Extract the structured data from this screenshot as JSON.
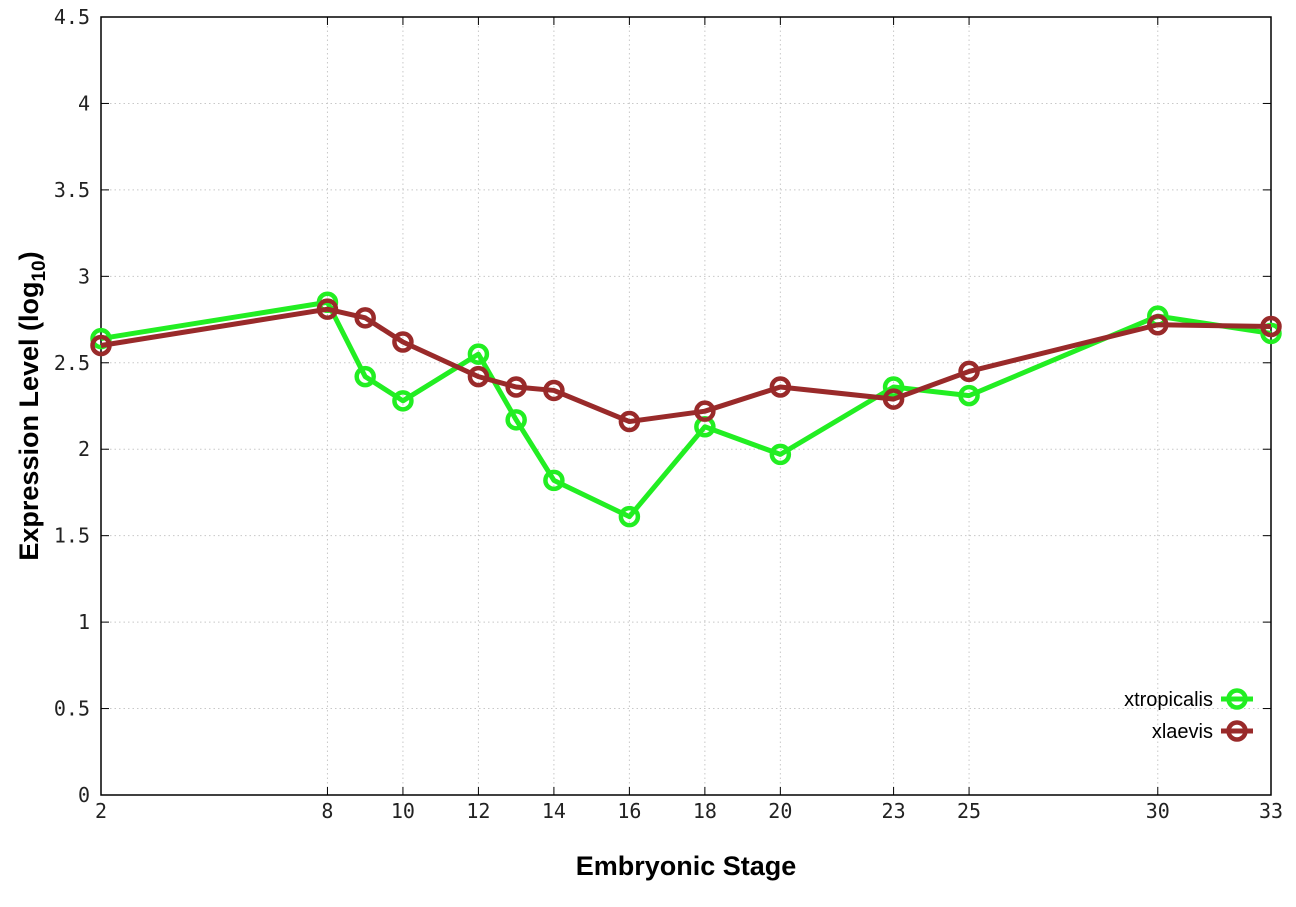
{
  "chart_data": {
    "type": "line",
    "xlabel": "Embryonic Stage",
    "ylabel_main": "Expression Level (log",
    "ylabel_sub": "10",
    "ylabel_close": ")",
    "x_ticks": [
      2,
      8,
      10,
      12,
      14,
      16,
      18,
      20,
      23,
      25,
      30,
      33
    ],
    "x_tick_labels": [
      "2",
      "8",
      "10",
      "12",
      "14",
      "16",
      "18",
      "20",
      "23",
      "25",
      "30",
      "33"
    ],
    "y_ticks": [
      0,
      0.5,
      1,
      1.5,
      2,
      2.5,
      3,
      3.5,
      4,
      4.5
    ],
    "y_tick_labels": [
      "0",
      "0.5",
      "1",
      "1.5",
      "2",
      "2.5",
      "3",
      "3.5",
      "4",
      "4.5"
    ],
    "xlim": [
      2,
      33
    ],
    "ylim": [
      0,
      4.5
    ],
    "grid": true,
    "legend_position": "bottom-right",
    "series": [
      {
        "name": "xtropicalis",
        "color": "#22ee22",
        "x": [
          2,
          8,
          9,
          10,
          12,
          13,
          14,
          16,
          18,
          20,
          23,
          25,
          30,
          33
        ],
        "y": [
          2.64,
          2.85,
          2.42,
          2.28,
          2.55,
          2.17,
          1.82,
          1.61,
          2.13,
          1.97,
          2.36,
          2.31,
          2.77,
          2.67
        ]
      },
      {
        "name": "xlaevis",
        "color": "#992a2a",
        "x": [
          2,
          8,
          9,
          10,
          12,
          13,
          14,
          16,
          18,
          20,
          23,
          25,
          30,
          33
        ],
        "y": [
          2.6,
          2.81,
          2.76,
          2.62,
          2.42,
          2.36,
          2.34,
          2.16,
          2.22,
          2.36,
          2.29,
          2.45,
          2.72,
          2.71
        ]
      }
    ]
  }
}
